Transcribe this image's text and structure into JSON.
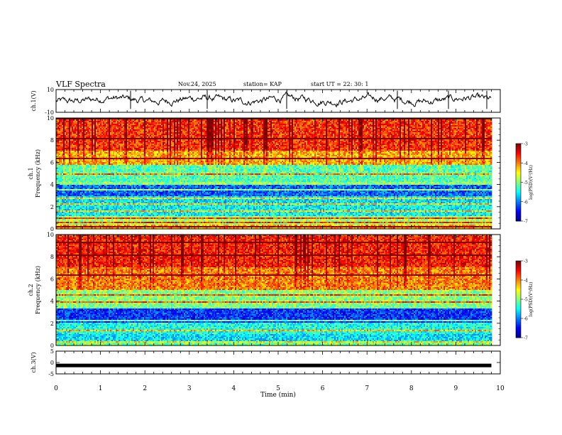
{
  "header": {
    "title": "VLF Spectra",
    "date": "Nov.24, 2025",
    "station": "station= KAP",
    "start": "start  UT  =   22: 30: 1"
  },
  "chart_data": [
    {
      "type": "line",
      "panel": "ch1-waveform",
      "ylabel": "ch.1(V)",
      "ylim": [
        -10,
        10
      ],
      "yticks": [
        -10,
        10
      ],
      "x_range_min": [
        0,
        9.8
      ],
      "note": "noisy waveform fluctuating roughly between -6 and +8 V"
    },
    {
      "type": "heatmap",
      "panel": "ch1-spectrogram",
      "ylabel_line1": "ch.1",
      "ylabel_line2": "Frequency  (kHz)",
      "ylim": [
        0,
        10
      ],
      "yticks": [
        0,
        2,
        4,
        6,
        8,
        10
      ],
      "x_range_min": [
        0,
        9.8
      ],
      "band_notes": [
        {
          "freq_khz": [
            0,
            1.2
          ],
          "level": "mixed green/yellow/orange horizontal lines"
        },
        {
          "freq_khz": [
            1.2,
            3.0
          ],
          "level": "green ~ -5.5"
        },
        {
          "freq_khz": [
            3.0,
            4.2
          ],
          "level": "cyan/blue ~ -6"
        },
        {
          "freq_khz": [
            4.2,
            5.8
          ],
          "level": "green ~ -5"
        },
        {
          "freq_khz": [
            5.8,
            10
          ],
          "level": "yellow/red ~ -3.5 with vertical sferic streaks"
        }
      ],
      "colorbar": {
        "label": "log(PSD)(V²/Hz)",
        "ticks": [
          "-3",
          "-4",
          "-5",
          "-6",
          "-7"
        ],
        "range": [
          -7,
          -3
        ]
      }
    },
    {
      "type": "heatmap",
      "panel": "ch2-spectrogram",
      "ylabel_line1": "ch.2",
      "ylabel_line2": "Frequency  (kHz)",
      "ylim": [
        0,
        10
      ],
      "yticks": [
        0,
        2,
        4,
        6,
        8,
        10
      ],
      "x_range_min": [
        0,
        9.8
      ],
      "band_notes": [
        {
          "freq_khz": [
            0,
            1.0
          ],
          "level": "green/cyan"
        },
        {
          "freq_khz": [
            1.0,
            2.0
          ],
          "level": "green ~ -5.5"
        },
        {
          "freq_khz": [
            2.0,
            3.5
          ],
          "level": "blue ~ -6.3"
        },
        {
          "freq_khz": [
            3.5,
            5.0
          ],
          "level": "green/yellow ~ -5"
        },
        {
          "freq_khz": [
            5.0,
            10
          ],
          "level": "yellow/red ~ -3.5 with vertical sferic streaks"
        }
      ],
      "colorbar": {
        "label": "log(PSD)(V²/Hz)",
        "ticks": [
          "-3",
          "-4",
          "-5",
          "-6",
          "-7"
        ],
        "range": [
          -7,
          -3
        ]
      }
    },
    {
      "type": "line",
      "panel": "ch3-waveform",
      "ylabel": "ch.3(V)",
      "ylim": [
        -5,
        5
      ],
      "yticks": [
        -5,
        0,
        5
      ],
      "value_v": -1.3,
      "x_range_min": [
        0,
        9.8
      ],
      "xlabel": "Time  (min)",
      "xlim": [
        0,
        10
      ],
      "xticks": [
        0,
        1,
        2,
        3,
        4,
        5,
        6,
        7,
        8,
        9,
        10
      ]
    }
  ]
}
